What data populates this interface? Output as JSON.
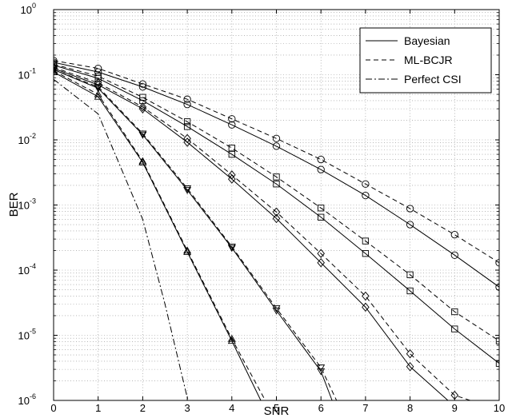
{
  "chart_data": {
    "type": "line",
    "xlabel": "SNR",
    "ylabel": "BER",
    "xlim": [
      0,
      10
    ],
    "ylim": [
      1e-06,
      1
    ],
    "yscale": "log",
    "grid": true,
    "legend_position": "top-right",
    "x_ticks": [
      "0",
      "1",
      "2",
      "3",
      "4",
      "5",
      "6",
      "7",
      "8",
      "9",
      "10"
    ],
    "y_tick_base": "10",
    "y_tick_exponents": [
      "0",
      "-1",
      "-2",
      "-3",
      "-4",
      "-5",
      "-6"
    ],
    "legend": [
      {
        "label": "Bayesian",
        "style": "solid"
      },
      {
        "label": "ML-BCJR",
        "style": "dashed"
      },
      {
        "label": "Perfect CSI",
        "style": "dashdot"
      }
    ],
    "series": [
      {
        "style": "dashed",
        "marker": "circle",
        "x": [
          0,
          1,
          2,
          3,
          4,
          5,
          6,
          7,
          8,
          9,
          10
        ],
        "y": [
          0.165,
          0.125,
          0.072,
          0.042,
          0.021,
          0.0105,
          0.005,
          0.0021,
          0.00088,
          0.00035,
          0.00013
        ]
      },
      {
        "style": "solid",
        "marker": "circle",
        "x": [
          0,
          1,
          2,
          3,
          4,
          5,
          6,
          7,
          8,
          9,
          10
        ],
        "y": [
          0.155,
          0.11,
          0.065,
          0.035,
          0.017,
          0.008,
          0.0035,
          0.0014,
          0.0005,
          0.00017,
          5.5e-05
        ]
      },
      {
        "style": "dashed",
        "marker": "square",
        "x": [
          0,
          1,
          2,
          3,
          4,
          5,
          6,
          7,
          8,
          9,
          10
        ],
        "y": [
          0.145,
          0.095,
          0.045,
          0.019,
          0.0075,
          0.0027,
          0.0009,
          0.00028,
          8.5e-05,
          2.3e-05,
          8.2e-06
        ]
      },
      {
        "style": "solid",
        "marker": "square",
        "x": [
          0,
          1,
          2,
          3,
          4,
          5,
          6,
          7,
          8,
          9,
          10
        ],
        "y": [
          0.14,
          0.088,
          0.04,
          0.016,
          0.006,
          0.0021,
          0.00065,
          0.00018,
          4.8e-05,
          1.25e-05,
          3.7e-06
        ]
      },
      {
        "style": "dashed",
        "marker": "diamond",
        "x": [
          0,
          1,
          2,
          3,
          4,
          5,
          6,
          7,
          8,
          9,
          9.35
        ],
        "y": [
          0.13,
          0.075,
          0.032,
          0.0105,
          0.0029,
          0.00078,
          0.00018,
          4e-05,
          5.2e-06,
          1.2e-06,
          1e-06
        ]
      },
      {
        "style": "solid",
        "marker": "diamond",
        "x": [
          0,
          1,
          2,
          3,
          4,
          5,
          6,
          7,
          8,
          8.85
        ],
        "y": [
          0.125,
          0.07,
          0.03,
          0.0092,
          0.0025,
          0.00062,
          0.00013,
          2.7e-05,
          3.3e-06,
          1e-06
        ]
      },
      {
        "style": "dashed",
        "marker": "triangle-down",
        "x": [
          0,
          1,
          2,
          3,
          4,
          5,
          6,
          6.35
        ],
        "y": [
          0.12,
          0.065,
          0.0125,
          0.0018,
          0.00023,
          2.6e-05,
          3.2e-06,
          1e-06
        ]
      },
      {
        "style": "solid",
        "marker": "triangle-down",
        "x": [
          0,
          1,
          2,
          3,
          4,
          5,
          6,
          6.25
        ],
        "y": [
          0.12,
          0.062,
          0.012,
          0.0017,
          0.00022,
          2.4e-05,
          2.8e-06,
          1e-06
        ]
      },
      {
        "style": "dashed",
        "marker": "triangle-up",
        "x": [
          0,
          1,
          2,
          3,
          4,
          4.75
        ],
        "y": [
          0.115,
          0.05,
          0.0047,
          0.0002,
          8.8e-06,
          1e-06
        ]
      },
      {
        "style": "solid",
        "marker": "triangle-up",
        "x": [
          0,
          1,
          2,
          3,
          4,
          4.65
        ],
        "y": [
          0.11,
          0.046,
          0.0045,
          0.00019,
          8.2e-06,
          1e-06
        ]
      },
      {
        "style": "dashdot",
        "marker": "none",
        "x": [
          0,
          1,
          2,
          2.5,
          3,
          3.05
        ],
        "y": [
          0.085,
          0.025,
          0.0006,
          3e-05,
          1.1e-06,
          1e-06
        ]
      }
    ]
  }
}
